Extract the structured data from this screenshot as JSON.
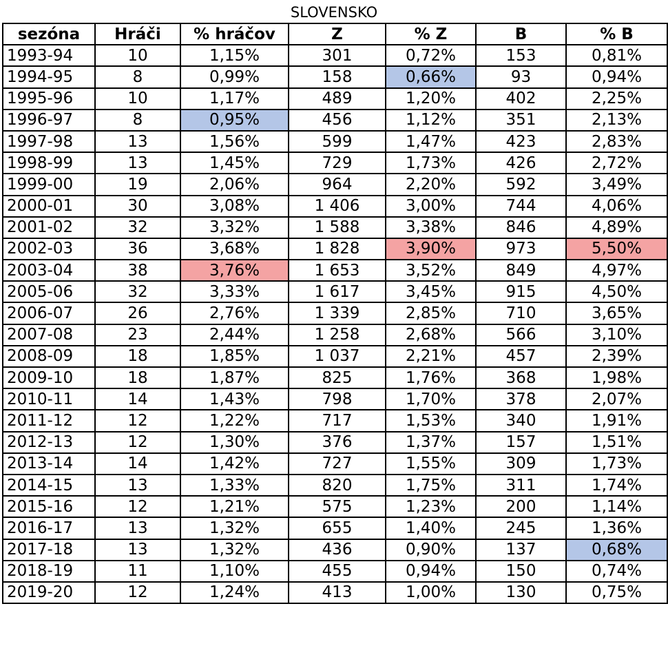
{
  "title": "SLOVENSKO",
  "headers": [
    "sezóna",
    "Hráči",
    "% hráčov",
    "Z",
    "% Z",
    "B",
    "% B"
  ],
  "colors": {
    "min_highlight": "#b4c6e7",
    "max_highlight": "#f4a3a3"
  },
  "rows": [
    {
      "cells": [
        "1993-94",
        "10",
        "1,15%",
        "301",
        "0,72%",
        "153",
        "0,81%"
      ],
      "highlights": {}
    },
    {
      "cells": [
        "1994-95",
        "8",
        "0,99%",
        "158",
        "0,66%",
        "93",
        "0,94%"
      ],
      "highlights": {
        "4": "blue"
      }
    },
    {
      "cells": [
        "1995-96",
        "10",
        "1,17%",
        "489",
        "1,20%",
        "402",
        "2,25%"
      ],
      "highlights": {}
    },
    {
      "cells": [
        "1996-97",
        "8",
        "0,95%",
        "456",
        "1,12%",
        "351",
        "2,13%"
      ],
      "highlights": {
        "2": "blue"
      }
    },
    {
      "cells": [
        "1997-98",
        "13",
        "1,56%",
        "599",
        "1,47%",
        "423",
        "2,83%"
      ],
      "highlights": {}
    },
    {
      "cells": [
        "1998-99",
        "13",
        "1,45%",
        "729",
        "1,73%",
        "426",
        "2,72%"
      ],
      "highlights": {}
    },
    {
      "cells": [
        "1999-00",
        "19",
        "2,06%",
        "964",
        "2,20%",
        "592",
        "3,49%"
      ],
      "highlights": {}
    },
    {
      "cells": [
        "2000-01",
        "30",
        "3,08%",
        "1 406",
        "3,00%",
        "744",
        "4,06%"
      ],
      "highlights": {}
    },
    {
      "cells": [
        "2001-02",
        "32",
        "3,32%",
        "1 588",
        "3,38%",
        "846",
        "4,89%"
      ],
      "highlights": {}
    },
    {
      "cells": [
        "2002-03",
        "36",
        "3,68%",
        "1 828",
        "3,90%",
        "973",
        "5,50%"
      ],
      "highlights": {
        "4": "red",
        "6": "red"
      }
    },
    {
      "cells": [
        "2003-04",
        "38",
        "3,76%",
        "1 653",
        "3,52%",
        "849",
        "4,97%"
      ],
      "highlights": {
        "2": "red"
      }
    },
    {
      "cells": [
        "2005-06",
        "32",
        "3,33%",
        "1 617",
        "3,45%",
        "915",
        "4,50%"
      ],
      "highlights": {}
    },
    {
      "cells": [
        "2006-07",
        "26",
        "2,76%",
        "1 339",
        "2,85%",
        "710",
        "3,65%"
      ],
      "highlights": {}
    },
    {
      "cells": [
        "2007-08",
        "23",
        "2,44%",
        "1 258",
        "2,68%",
        "566",
        "3,10%"
      ],
      "highlights": {}
    },
    {
      "cells": [
        "2008-09",
        "18",
        "1,85%",
        "1 037",
        "2,21%",
        "457",
        "2,39%"
      ],
      "highlights": {}
    },
    {
      "cells": [
        "2009-10",
        "18",
        "1,87%",
        "825",
        "1,76%",
        "368",
        "1,98%"
      ],
      "highlights": {}
    },
    {
      "cells": [
        "2010-11",
        "14",
        "1,43%",
        "798",
        "1,70%",
        "378",
        "2,07%"
      ],
      "highlights": {}
    },
    {
      "cells": [
        "2011-12",
        "12",
        "1,22%",
        "717",
        "1,53%",
        "340",
        "1,91%"
      ],
      "highlights": {}
    },
    {
      "cells": [
        "2012-13",
        "12",
        "1,30%",
        "376",
        "1,37%",
        "157",
        "1,51%"
      ],
      "highlights": {}
    },
    {
      "cells": [
        "2013-14",
        "14",
        "1,42%",
        "727",
        "1,55%",
        "309",
        "1,73%"
      ],
      "highlights": {}
    },
    {
      "cells": [
        "2014-15",
        "13",
        "1,33%",
        "820",
        "1,75%",
        "311",
        "1,74%"
      ],
      "highlights": {}
    },
    {
      "cells": [
        "2015-16",
        "12",
        "1,21%",
        "575",
        "1,23%",
        "200",
        "1,14%"
      ],
      "highlights": {}
    },
    {
      "cells": [
        "2016-17",
        "13",
        "1,32%",
        "655",
        "1,40%",
        "245",
        "1,36%"
      ],
      "highlights": {}
    },
    {
      "cells": [
        "2017-18",
        "13",
        "1,32%",
        "436",
        "0,90%",
        "137",
        "0,68%"
      ],
      "highlights": {
        "6": "blue"
      }
    },
    {
      "cells": [
        "2018-19",
        "11",
        "1,10%",
        "455",
        "0,94%",
        "150",
        "0,74%"
      ],
      "highlights": {}
    },
    {
      "cells": [
        "2019-20",
        "12",
        "1,24%",
        "413",
        "1,00%",
        "130",
        "0,75%"
      ],
      "highlights": {}
    }
  ]
}
